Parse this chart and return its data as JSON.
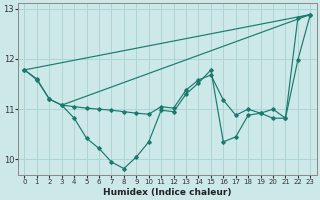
{
  "xlabel": "Humidex (Indice chaleur)",
  "background_color": "#cce8e8",
  "grid_color": "#aed4d4",
  "line_color": "#1a7a6e",
  "xlim": [
    -0.5,
    23.5
  ],
  "ylim": [
    9.7,
    13.1
  ],
  "yticks": [
    10,
    11,
    12,
    13
  ],
  "xticks": [
    0,
    1,
    2,
    3,
    4,
    5,
    6,
    7,
    8,
    9,
    10,
    11,
    12,
    13,
    14,
    15,
    16,
    17,
    18,
    19,
    20,
    21,
    22,
    23
  ],
  "series_zigzag1": {
    "x": [
      0,
      1,
      2,
      3,
      4,
      5,
      6,
      7,
      8,
      9,
      10,
      11,
      12,
      13,
      14,
      15,
      16,
      17,
      18,
      19,
      20,
      21,
      22,
      23
    ],
    "y": [
      11.78,
      11.6,
      11.2,
      11.08,
      10.82,
      10.42,
      10.22,
      9.95,
      9.82,
      10.05,
      10.35,
      10.98,
      10.95,
      11.3,
      11.52,
      11.78,
      10.35,
      10.45,
      10.88,
      10.92,
      10.82,
      10.82,
      12.82,
      12.88
    ]
  },
  "series_zigzag2": {
    "x": [
      0,
      1,
      2,
      3,
      4,
      5,
      6,
      7,
      8,
      9,
      10,
      11,
      12,
      13,
      14,
      15,
      16,
      17,
      18,
      19,
      20,
      21,
      22,
      23
    ],
    "y": [
      11.78,
      11.58,
      11.2,
      11.08,
      11.05,
      11.02,
      11.0,
      10.98,
      10.95,
      10.92,
      10.9,
      11.05,
      11.02,
      11.38,
      11.58,
      11.68,
      11.18,
      10.88,
      11.0,
      10.92,
      11.0,
      10.82,
      11.98,
      12.88
    ]
  },
  "series_line1": {
    "x": [
      0,
      23
    ],
    "y": [
      11.78,
      12.88
    ]
  },
  "series_line2": {
    "x": [
      3,
      23
    ],
    "y": [
      11.08,
      12.88
    ]
  }
}
